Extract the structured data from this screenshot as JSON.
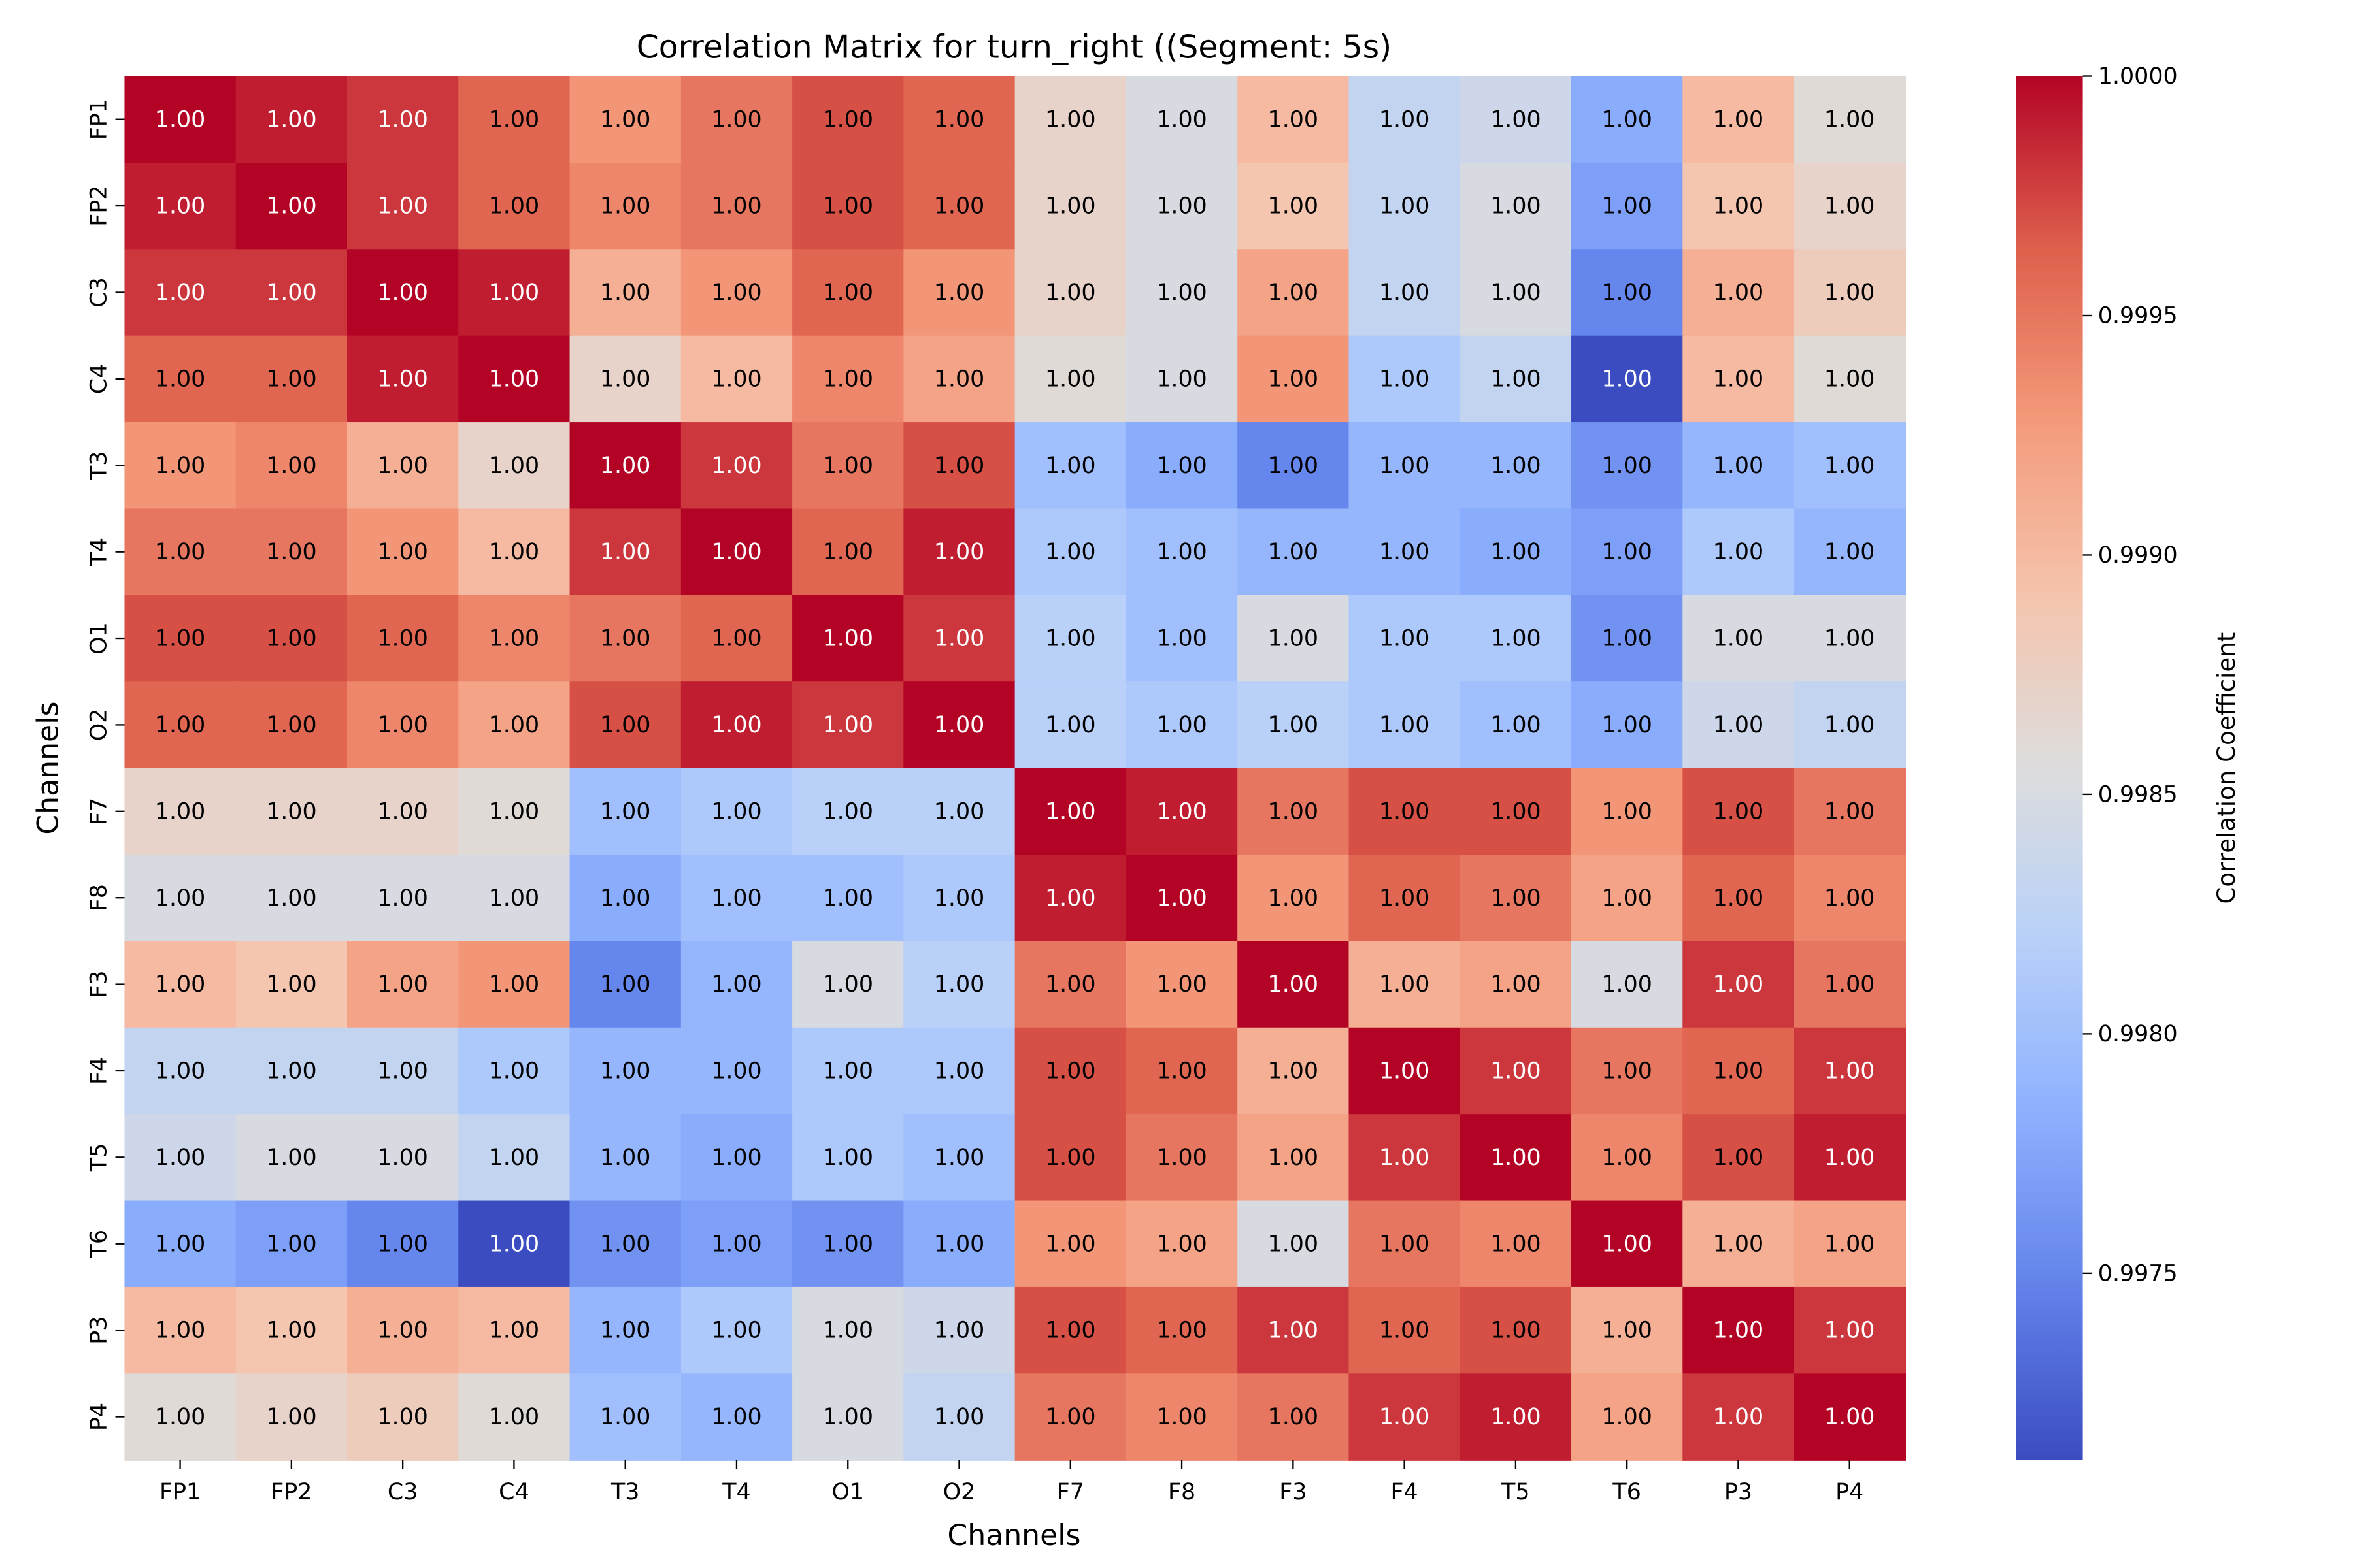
{
  "chart_data": {
    "type": "heatmap",
    "title": "Correlation Matrix for turn_right ((Segment: 5s)",
    "xlabel": "Channels",
    "ylabel": "Channels",
    "colorbar_label": "Correlation Coefficient",
    "colormap": "coolwarm",
    "vmin": 0.99711,
    "vmax": 1.0,
    "colorbar_ticks": [
      1.0,
      0.9995,
      0.999,
      0.9985,
      0.998,
      0.9975
    ],
    "colorbar_tick_labels": [
      "1.0000",
      "0.9995",
      "0.9990",
      "0.9985",
      "0.9980",
      "0.9975"
    ],
    "annotation_format": "2 decimals",
    "labels": [
      "FP1",
      "FP2",
      "C3",
      "C4",
      "T3",
      "T4",
      "O1",
      "O2",
      "F7",
      "F8",
      "F3",
      "F4",
      "T5",
      "T6",
      "P3",
      "P4"
    ],
    "values": [
      [
        1.0,
        0.9999,
        0.9998,
        0.9996,
        0.9993,
        0.9995,
        0.9997,
        0.9996,
        0.9987,
        0.9985,
        0.999,
        0.9983,
        0.9984,
        0.9978,
        0.999,
        0.9986
      ],
      [
        0.9999,
        1.0,
        0.9998,
        0.9996,
        0.9994,
        0.9995,
        0.9997,
        0.9996,
        0.9987,
        0.9985,
        0.9989,
        0.9983,
        0.9985,
        0.9977,
        0.9989,
        0.9987
      ],
      [
        0.9998,
        0.9998,
        1.0,
        0.9999,
        0.9991,
        0.9993,
        0.9996,
        0.9993,
        0.9987,
        0.9985,
        0.9992,
        0.9983,
        0.9985,
        0.9975,
        0.9991,
        0.9988
      ],
      [
        0.9996,
        0.9996,
        0.9999,
        1.0,
        0.9987,
        0.999,
        0.9994,
        0.9992,
        0.9986,
        0.9985,
        0.9993,
        0.9981,
        0.9983,
        0.99711,
        0.999,
        0.9986
      ],
      [
        0.9993,
        0.9994,
        0.9991,
        0.9987,
        1.0,
        0.9998,
        0.9995,
        0.9997,
        0.998,
        0.9978,
        0.9975,
        0.9979,
        0.9979,
        0.9976,
        0.9979,
        0.998
      ],
      [
        0.9995,
        0.9995,
        0.9993,
        0.999,
        0.9998,
        1.0,
        0.9996,
        0.9999,
        0.9981,
        0.998,
        0.9979,
        0.9979,
        0.9978,
        0.9977,
        0.9981,
        0.9979
      ],
      [
        0.9997,
        0.9997,
        0.9996,
        0.9994,
        0.9995,
        0.9996,
        1.0,
        0.9998,
        0.9982,
        0.998,
        0.9985,
        0.9981,
        0.9981,
        0.9976,
        0.9985,
        0.9985
      ],
      [
        0.9996,
        0.9996,
        0.9994,
        0.9992,
        0.9997,
        0.9999,
        0.9998,
        1.0,
        0.9982,
        0.9981,
        0.9982,
        0.9981,
        0.998,
        0.9978,
        0.9984,
        0.9983
      ],
      [
        0.9987,
        0.9987,
        0.9987,
        0.9986,
        0.998,
        0.9981,
        0.9982,
        0.9982,
        1.0,
        0.9999,
        0.9995,
        0.9997,
        0.9997,
        0.9993,
        0.9997,
        0.9995
      ],
      [
        0.9985,
        0.9985,
        0.9985,
        0.9985,
        0.9978,
        0.998,
        0.998,
        0.9981,
        0.9999,
        1.0,
        0.9993,
        0.9996,
        0.9995,
        0.9992,
        0.9996,
        0.9994
      ],
      [
        0.999,
        0.9989,
        0.9992,
        0.9993,
        0.9975,
        0.9979,
        0.9985,
        0.9982,
        0.9995,
        0.9993,
        1.0,
        0.9991,
        0.9992,
        0.9985,
        0.9998,
        0.9995
      ],
      [
        0.9983,
        0.9983,
        0.9983,
        0.9981,
        0.9979,
        0.9979,
        0.9981,
        0.9981,
        0.9997,
        0.9996,
        0.9991,
        1.0,
        0.9998,
        0.9995,
        0.9996,
        0.9998
      ],
      [
        0.9984,
        0.9985,
        0.9985,
        0.9983,
        0.9979,
        0.9978,
        0.9981,
        0.998,
        0.9997,
        0.9995,
        0.9992,
        0.9998,
        1.0,
        0.9994,
        0.9997,
        0.9999
      ],
      [
        0.9978,
        0.9977,
        0.9975,
        0.99711,
        0.9976,
        0.9977,
        0.9976,
        0.9978,
        0.9993,
        0.9992,
        0.9985,
        0.9995,
        0.9994,
        1.0,
        0.9991,
        0.9992
      ],
      [
        0.999,
        0.9989,
        0.9991,
        0.999,
        0.9979,
        0.9981,
        0.9985,
        0.9984,
        0.9997,
        0.9996,
        0.9998,
        0.9996,
        0.9997,
        0.9991,
        1.0,
        0.9998
      ],
      [
        0.9986,
        0.9987,
        0.9988,
        0.9986,
        0.998,
        0.9979,
        0.9985,
        0.9983,
        0.9995,
        0.9994,
        0.9995,
        0.9998,
        0.9999,
        0.9992,
        0.9998,
        1.0
      ]
    ]
  }
}
